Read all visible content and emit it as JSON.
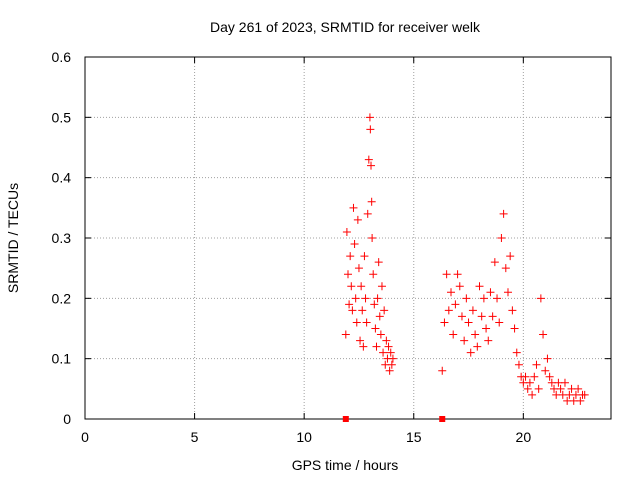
{
  "chart_data": {
    "type": "scatter",
    "title": "Day 261 of 2023, SRMTID for receiver welk",
    "xlabel": "GPS time / hours",
    "ylabel": "SRMTID / TECUs",
    "xlim": [
      0,
      24
    ],
    "ylim": [
      0,
      0.6
    ],
    "x_ticks": [
      0,
      5,
      10,
      15,
      20
    ],
    "y_ticks": [
      0,
      0.1,
      0.2,
      0.3,
      0.4,
      0.5,
      0.6
    ],
    "x_tick_labels": [
      "0",
      "5",
      "10",
      "15",
      "20"
    ],
    "y_tick_labels": [
      "0",
      "0.1",
      "0.2",
      "0.3",
      "0.4",
      "0.5",
      "0.6"
    ],
    "grid": true,
    "marker": "+",
    "color": "#ff0000",
    "square_markers": [
      {
        "x": 11.9,
        "y": 0.0
      },
      {
        "x": 16.3,
        "y": 0.0
      }
    ],
    "series": [
      {
        "name": "SRMTID",
        "x": [
          11.9,
          11.95,
          12.0,
          12.05,
          12.1,
          12.15,
          12.2,
          12.25,
          12.3,
          12.35,
          12.4,
          12.45,
          12.5,
          12.55,
          12.6,
          12.65,
          12.7,
          12.75,
          12.8,
          12.85,
          12.9,
          12.95,
          13.0,
          13.02,
          13.05,
          13.08,
          13.1,
          13.15,
          13.2,
          13.25,
          13.3,
          13.35,
          13.4,
          13.45,
          13.5,
          13.55,
          13.6,
          13.65,
          13.7,
          13.75,
          13.8,
          13.85,
          13.9,
          13.95,
          14.0,
          14.05,
          16.3,
          16.4,
          16.5,
          16.6,
          16.7,
          16.8,
          16.9,
          17.0,
          17.1,
          17.2,
          17.3,
          17.4,
          17.5,
          17.6,
          17.7,
          17.8,
          17.9,
          18.0,
          18.1,
          18.2,
          18.3,
          18.4,
          18.5,
          18.6,
          18.7,
          18.8,
          18.9,
          19.0,
          19.1,
          19.2,
          19.3,
          19.4,
          19.5,
          19.6,
          19.7,
          19.8,
          19.9,
          20.0,
          20.1,
          20.2,
          20.3,
          20.4,
          20.5,
          20.6,
          20.7,
          20.8,
          20.9,
          21.0,
          21.1,
          21.2,
          21.3,
          21.4,
          21.5,
          21.6,
          21.7,
          21.8,
          21.9,
          22.0,
          22.1,
          22.2,
          22.3,
          22.4,
          22.5,
          22.6,
          22.7,
          22.8
        ],
        "y": [
          0.14,
          0.31,
          0.24,
          0.19,
          0.27,
          0.22,
          0.18,
          0.35,
          0.29,
          0.2,
          0.16,
          0.33,
          0.25,
          0.13,
          0.22,
          0.18,
          0.12,
          0.27,
          0.2,
          0.16,
          0.34,
          0.43,
          0.5,
          0.48,
          0.42,
          0.36,
          0.3,
          0.24,
          0.19,
          0.15,
          0.12,
          0.2,
          0.26,
          0.17,
          0.14,
          0.22,
          0.11,
          0.18,
          0.09,
          0.13,
          0.1,
          0.12,
          0.08,
          0.11,
          0.09,
          0.1,
          0.08,
          0.16,
          0.24,
          0.18,
          0.21,
          0.14,
          0.19,
          0.24,
          0.22,
          0.17,
          0.13,
          0.2,
          0.16,
          0.11,
          0.18,
          0.14,
          0.12,
          0.22,
          0.17,
          0.2,
          0.15,
          0.13,
          0.21,
          0.17,
          0.26,
          0.2,
          0.16,
          0.3,
          0.34,
          0.25,
          0.21,
          0.27,
          0.18,
          0.15,
          0.11,
          0.09,
          0.07,
          0.06,
          0.07,
          0.05,
          0.06,
          0.04,
          0.07,
          0.09,
          0.05,
          0.2,
          0.14,
          0.08,
          0.1,
          0.07,
          0.06,
          0.05,
          0.04,
          0.06,
          0.05,
          0.04,
          0.06,
          0.03,
          0.04,
          0.05,
          0.03,
          0.04,
          0.05,
          0.03,
          0.04,
          0.04
        ]
      }
    ]
  }
}
